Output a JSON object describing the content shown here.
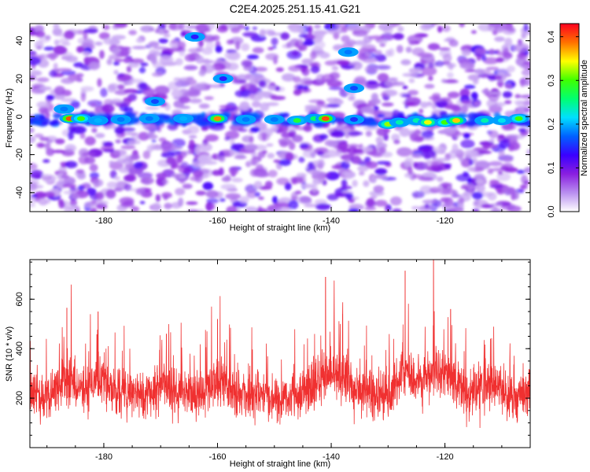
{
  "title": "C2E4.2025.251.15.41.G21",
  "chart_data": [
    {
      "type": "heatmap",
      "name": "spectrogram",
      "xlabel": "Height of straight line (km)",
      "ylabel": "Frequency (Hz)",
      "xlim": [
        -193,
        -105
      ],
      "ylim": [
        -50,
        49
      ],
      "xticks": [
        -180,
        -160,
        -140,
        -120
      ],
      "xtick_labels": [
        "-180",
        "-160",
        "-140",
        "-120"
      ],
      "yticks": [
        -40,
        -20,
        0,
        20,
        40
      ],
      "ytick_labels": [
        "-40",
        "-20",
        "0",
        "20",
        "40"
      ],
      "colorbar": {
        "label": "Normalized spectral amplitude",
        "range": [
          0,
          0.43
        ],
        "ticks": [
          0,
          0.1,
          0.2,
          0.3,
          0.4
        ],
        "tick_labels": [
          "0.0",
          "0.1",
          "0.2",
          "0.3",
          "0.4"
        ],
        "colors": [
          "#ffffff",
          "#b98ff0",
          "#8a1fe0",
          "#3a00ff",
          "#0060ff",
          "#00e0ff",
          "#00ff70",
          "#40ff00",
          "#ffff00",
          "#ff7000",
          "#ff0020"
        ]
      },
      "features": [
        {
          "x": -186,
          "y": -1,
          "amp": 0.4
        },
        {
          "x": -184,
          "y": -1,
          "amp": 0.3
        },
        {
          "x": -181,
          "y": -2,
          "amp": 0.2
        },
        {
          "x": -177,
          "y": -1.5,
          "amp": 0.18
        },
        {
          "x": -172,
          "y": -1,
          "amp": 0.18
        },
        {
          "x": -166,
          "y": -1,
          "amp": 0.2
        },
        {
          "x": -160,
          "y": -1,
          "amp": 0.38
        },
        {
          "x": -155,
          "y": -1.5,
          "amp": 0.18
        },
        {
          "x": -150,
          "y": -1.5,
          "amp": 0.18
        },
        {
          "x": -146,
          "y": -2,
          "amp": 0.28
        },
        {
          "x": -143,
          "y": -1,
          "amp": 0.26
        },
        {
          "x": -141,
          "y": -1,
          "amp": 0.4
        },
        {
          "x": -136,
          "y": -1.5,
          "amp": 0.15
        },
        {
          "x": -130,
          "y": -4,
          "amp": 0.32
        },
        {
          "x": -128,
          "y": -3,
          "amp": 0.24
        },
        {
          "x": -125,
          "y": -2,
          "amp": 0.24
        },
        {
          "x": -123,
          "y": -3,
          "amp": 0.34
        },
        {
          "x": -120,
          "y": -3,
          "amp": 0.3
        },
        {
          "x": -118,
          "y": -2,
          "amp": 0.36
        },
        {
          "x": -113,
          "y": -2,
          "amp": 0.24
        },
        {
          "x": -110,
          "y": -2,
          "amp": 0.22
        },
        {
          "x": -107,
          "y": -1,
          "amp": 0.3
        },
        {
          "x": -187,
          "y": 4,
          "amp": 0.18
        },
        {
          "x": -171,
          "y": 8,
          "amp": 0.16
        },
        {
          "x": -159,
          "y": 20,
          "amp": 0.14
        },
        {
          "x": -137,
          "y": 34,
          "amp": 0.18
        },
        {
          "x": -136,
          "y": 15,
          "amp": 0.16
        },
        {
          "x": -164,
          "y": 42,
          "amp": 0.14
        }
      ]
    },
    {
      "type": "line",
      "name": "snr",
      "xlabel": "Height of straight line (km)",
      "ylabel": "SNR (10 * v/v)",
      "xlim": [
        -193,
        -105
      ],
      "ylim": [
        0,
        760
      ],
      "xticks": [
        -180,
        -160,
        -140,
        -120
      ],
      "xtick_labels": [
        "-180",
        "-160",
        "-140",
        "-120"
      ],
      "yticks": [
        200,
        400,
        600
      ],
      "ytick_labels": [
        "200",
        "400",
        "600"
      ],
      "color": "#f03030",
      "peaks": [
        {
          "x": -186.5,
          "y": 565
        },
        {
          "x": -181,
          "y": 550
        },
        {
          "x": -169,
          "y": 460
        },
        {
          "x": -160,
          "y": 520
        },
        {
          "x": -141,
          "y": 690
        },
        {
          "x": -138,
          "y": 540
        },
        {
          "x": -127,
          "y": 715
        },
        {
          "x": -122,
          "y": 760
        },
        {
          "x": -119,
          "y": 560
        },
        {
          "x": -112,
          "y": 440
        }
      ],
      "baseline_mean": 210
    }
  ]
}
